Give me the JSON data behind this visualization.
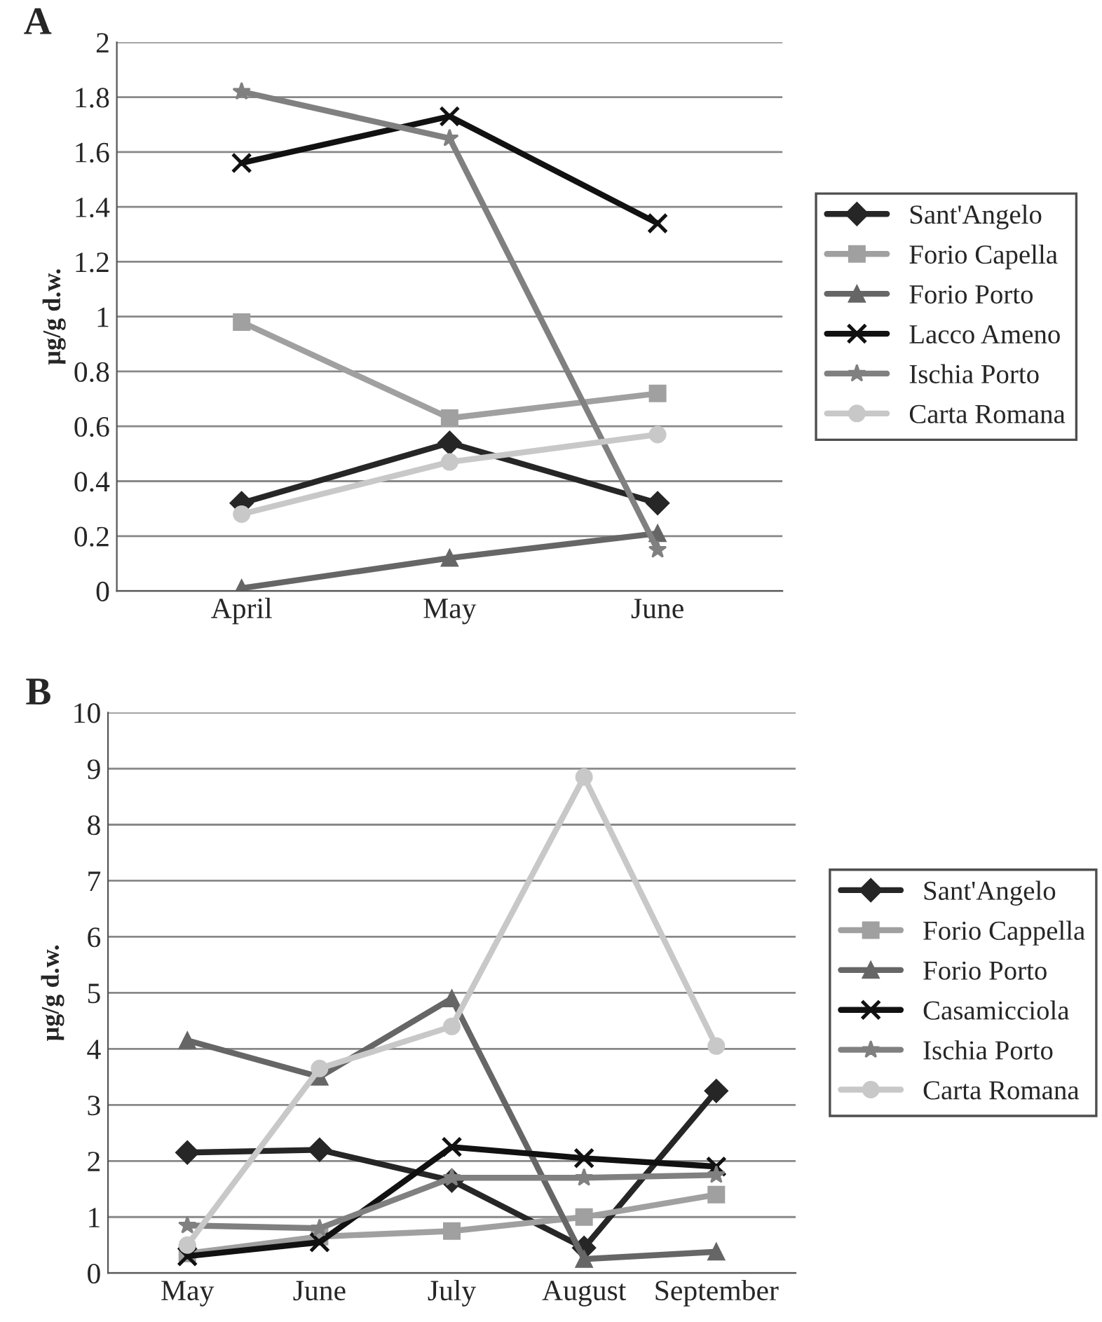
{
  "chart_data": [
    {
      "type": "line",
      "title": "A",
      "ylabel": "µg/g d.w.",
      "categories": [
        "April",
        "May",
        "June"
      ],
      "ylim": [
        0,
        2
      ],
      "yticks": [
        0,
        {
          "value": 0.2,
          "label": "0.2"
        },
        {
          "value": 0.4,
          "label": "0.4"
        },
        {
          "value": 0.6,
          "label": "0.6"
        },
        {
          "value": 0.8,
          "label": "0.8"
        },
        1,
        {
          "value": 1.2,
          "label": "1.2"
        },
        {
          "value": 1.4,
          "label": "1.4"
        },
        {
          "value": 1.6,
          "label": "1.6"
        },
        {
          "value": 1.8,
          "label": "1.8"
        },
        2
      ],
      "grid": "y",
      "legend": "right",
      "series": [
        {
          "name": "Sant'Angelo",
          "color": "#262626",
          "marker": "diamond",
          "values": [
            0.32,
            0.54,
            0.32
          ]
        },
        {
          "name": "Forio Capella",
          "color": "#a0a0a0",
          "marker": "square",
          "values": [
            0.98,
            0.63,
            0.72
          ]
        },
        {
          "name": "Forio Porto",
          "color": "#666666",
          "marker": "triangle",
          "values": [
            0.01,
            0.12,
            0.21
          ]
        },
        {
          "name": "Lacco Ameno",
          "color": "#111111",
          "marker": "cross",
          "values": [
            1.56,
            1.73,
            1.34
          ]
        },
        {
          "name": "Ischia Porto",
          "color": "#808080",
          "marker": "star",
          "values": [
            1.82,
            1.65,
            0.15
          ]
        },
        {
          "name": "Carta Romana",
          "color": "#c8c8c8",
          "marker": "circle",
          "values": [
            0.28,
            0.47,
            0.57
          ]
        }
      ]
    },
    {
      "type": "line",
      "title": "B",
      "ylabel": "µg/g d.w.",
      "categories": [
        "May",
        "June",
        "July",
        "August",
        "September"
      ],
      "ylim": [
        0,
        10
      ],
      "yticks": [
        0,
        1,
        2,
        3,
        4,
        5,
        6,
        7,
        8,
        9,
        10
      ],
      "grid": "y",
      "legend": "right",
      "series": [
        {
          "name": "Sant'Angelo",
          "color": "#262626",
          "marker": "diamond",
          "values": [
            2.15,
            2.2,
            1.65,
            0.45,
            3.25
          ]
        },
        {
          "name": "Forio Cappella",
          "color": "#a0a0a0",
          "marker": "square",
          "values": [
            0.35,
            0.65,
            0.75,
            1.0,
            1.4
          ]
        },
        {
          "name": "Forio Porto",
          "color": "#666666",
          "marker": "triangle",
          "values": [
            4.15,
            3.5,
            4.9,
            0.25,
            0.38
          ]
        },
        {
          "name": "Casamicciola",
          "color": "#111111",
          "marker": "cross",
          "values": [
            0.3,
            0.55,
            2.25,
            2.05,
            1.9
          ]
        },
        {
          "name": "Ischia Porto",
          "color": "#808080",
          "marker": "star",
          "values": [
            0.85,
            0.8,
            1.7,
            1.7,
            1.75
          ]
        },
        {
          "name": "Carta Romana",
          "color": "#c8c8c8",
          "marker": "circle",
          "values": [
            0.5,
            3.65,
            4.4,
            8.85,
            4.05
          ]
        }
      ]
    }
  ]
}
